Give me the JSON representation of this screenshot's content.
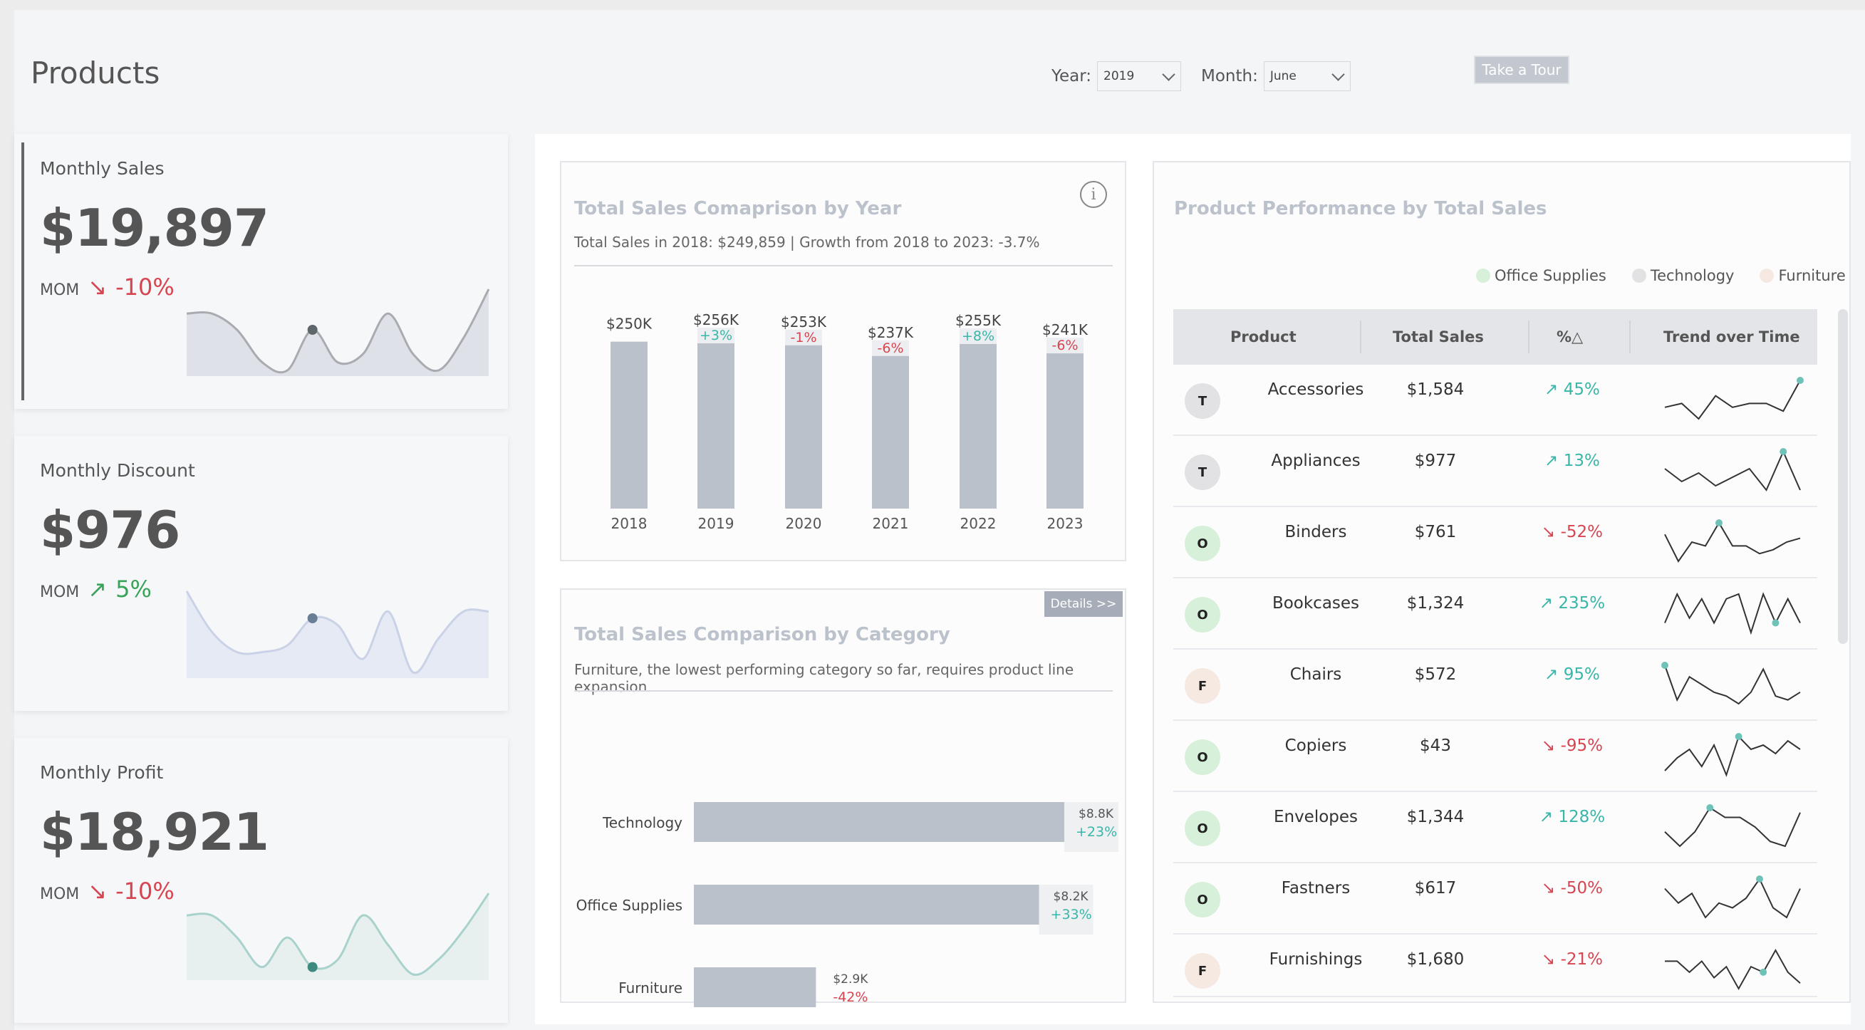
{
  "header": {
    "title": "Products",
    "year_label": "Year:",
    "year_value": "2019",
    "month_label": "Month:",
    "month_value": "June",
    "tour_button": "Take a Tour"
  },
  "kpis": [
    {
      "label": "Monthly Sales",
      "value": "$19,897",
      "mom_label": "MOM",
      "mom_arrow": "↘",
      "mom_change": "-10%",
      "direction": "down",
      "area_color": "#dfe1e8",
      "line_color": "#a9abb1",
      "dot_color": "#5e656b"
    },
    {
      "label": "Monthly Discount",
      "value": "$976",
      "mom_label": "MOM",
      "mom_arrow": "↗",
      "mom_change": "5%",
      "direction": "up",
      "area_color": "#e6eaf4",
      "line_color": "#c9d2e6",
      "dot_color": "#6a7f96"
    },
    {
      "label": "Monthly Profit",
      "value": "$18,921",
      "mom_label": "MOM",
      "mom_arrow": "↘",
      "mom_change": "-10%",
      "direction": "down",
      "area_color": "#e7f0ef",
      "line_color": "#a9d2cc",
      "dot_color": "#3e8a80"
    }
  ],
  "year_card": {
    "title": "Total Sales Comaprison by Year",
    "subtitle": "Total Sales in 2018: $249,859 | Growth from 2018 to 2023: -3.7%",
    "info_icon": "info-icon"
  },
  "category_card": {
    "title": "Total Sales Comparison by Category",
    "subtitle": "Furniture, the lowest performing category so far, requires product line expansion",
    "details_button": "Details >>"
  },
  "chart_data": [
    {
      "type": "bar",
      "title": "Total Sales Comaprison by Year",
      "categories": [
        "2018",
        "2019",
        "2020",
        "2021",
        "2022",
        "2023"
      ],
      "values": [
        250,
        256,
        253,
        237,
        255,
        241
      ],
      "value_labels": [
        "$250K",
        "$256K",
        "$253K",
        "$237K",
        "$255K",
        "$241K"
      ],
      "growth_labels": [
        "",
        "+3%",
        "-1%",
        "-6%",
        "+8%",
        "-6%"
      ],
      "growth_direction": [
        "",
        "up",
        "down",
        "down",
        "up",
        "down"
      ],
      "ylim": [
        0,
        256
      ],
      "bar_color": "#bbc1ca"
    },
    {
      "type": "bar",
      "orientation": "horizontal",
      "title": "Total Sales Comparison by Category",
      "categories": [
        "Technology",
        "Office Supplies",
        "Furniture"
      ],
      "values": [
        8.8,
        8.2,
        2.9
      ],
      "value_labels": [
        "$8.8K",
        "$8.2K",
        "$2.9K"
      ],
      "growth_labels": [
        "+23%",
        "+33%",
        "-42%"
      ],
      "growth_direction": [
        "up",
        "up",
        "down"
      ],
      "xlim": [
        0,
        8.8
      ],
      "bar_color": "#bbc1ca"
    }
  ],
  "product_table": {
    "title": "Product Performance by Total Sales",
    "legend": [
      {
        "label": "Office Supplies",
        "color": "#d7f0d9"
      },
      {
        "label": "Technology",
        "color": "#e2e2e4"
      },
      {
        "label": "Furniture",
        "color": "#f5e9e2"
      }
    ],
    "columns": [
      "Product",
      "Total Sales",
      "%△",
      "Trend over Time"
    ],
    "rows": [
      {
        "category_letter": "T",
        "badge_color": "#e2e2e4",
        "name": "Accessories",
        "sales": "$1,584",
        "pct": "45%",
        "arrow": "↗",
        "direction": "up",
        "trend": [
          5,
          6,
          2,
          8,
          5,
          6,
          6,
          4,
          12
        ],
        "dot": 8
      },
      {
        "category_letter": "T",
        "badge_color": "#e2e2e4",
        "name": "Appliances",
        "sales": "$977",
        "pct": "13%",
        "arrow": "↗",
        "direction": "up",
        "trend": [
          7,
          4,
          6,
          3,
          5,
          7,
          2,
          11,
          2
        ],
        "dot": 7
      },
      {
        "category_letter": "O",
        "badge_color": "#d7f0d9",
        "name": "Binders",
        "sales": "$761",
        "pct": "-52%",
        "arrow": "↘",
        "direction": "down",
        "trend": [
          8,
          1,
          6,
          5,
          11,
          5,
          5,
          3,
          4,
          6,
          7
        ],
        "dot": 4
      },
      {
        "category_letter": "O",
        "badge_color": "#d7f0d9",
        "name": "Bookcases",
        "sales": "$1,324",
        "pct": "235%",
        "arrow": "↗",
        "direction": "up",
        "trend": [
          3,
          9,
          4,
          8,
          3,
          8,
          9,
          1,
          9,
          3,
          8,
          3
        ],
        "dot": 9
      },
      {
        "category_letter": "F",
        "badge_color": "#f5e9e2",
        "name": "Chairs",
        "sales": "$572",
        "pct": "95%",
        "arrow": "↗",
        "direction": "up",
        "trend": [
          11,
          2,
          8,
          6,
          4,
          3,
          1,
          4,
          10,
          3,
          2,
          4
        ],
        "dot": 0
      },
      {
        "category_letter": "O",
        "badge_color": "#d7f0d9",
        "name": "Copiers",
        "sales": "$43",
        "pct": "-95%",
        "arrow": "↘",
        "direction": "down",
        "trend": [
          2,
          5,
          7,
          3,
          8,
          1,
          10,
          7,
          8,
          6,
          9,
          7
        ],
        "dot": 6
      },
      {
        "category_letter": "O",
        "badge_color": "#d7f0d9",
        "name": "Envelopes",
        "sales": "$1,344",
        "pct": "128%",
        "arrow": "↗",
        "direction": "up",
        "trend": [
          5,
          2,
          5,
          10,
          8,
          8,
          6,
          3,
          2,
          9
        ],
        "dot": 3
      },
      {
        "category_letter": "O",
        "badge_color": "#d7f0d9",
        "name": "Fastners",
        "sales": "$617",
        "pct": "-50%",
        "arrow": "↘",
        "direction": "down",
        "trend": [
          8,
          5,
          7,
          2,
          5,
          4,
          6,
          10,
          4,
          2,
          8
        ],
        "dot": 7
      },
      {
        "category_letter": "F",
        "badge_color": "#f5e9e2",
        "name": "Furnishings",
        "sales": "$1,680",
        "pct": "-21%",
        "arrow": "↘",
        "direction": "down",
        "trend": [
          6,
          6,
          4,
          6,
          3,
          5,
          1,
          5,
          4,
          8,
          4,
          2
        ],
        "dot": 8
      }
    ]
  },
  "kpi_sparks": [
    [
      9,
      9,
      7,
      3,
      2,
      7,
      3,
      4,
      9,
      4,
      2,
      6,
      12
    ],
    [
      13,
      7,
      4,
      4,
      5,
      9,
      8,
      3,
      10,
      1,
      6,
      10,
      10
    ],
    [
      10,
      10,
      7,
      3,
      7,
      3,
      4,
      10,
      6,
      2,
      4,
      8,
      13
    ]
  ],
  "kpi_spark_dots": [
    5,
    5,
    5
  ]
}
